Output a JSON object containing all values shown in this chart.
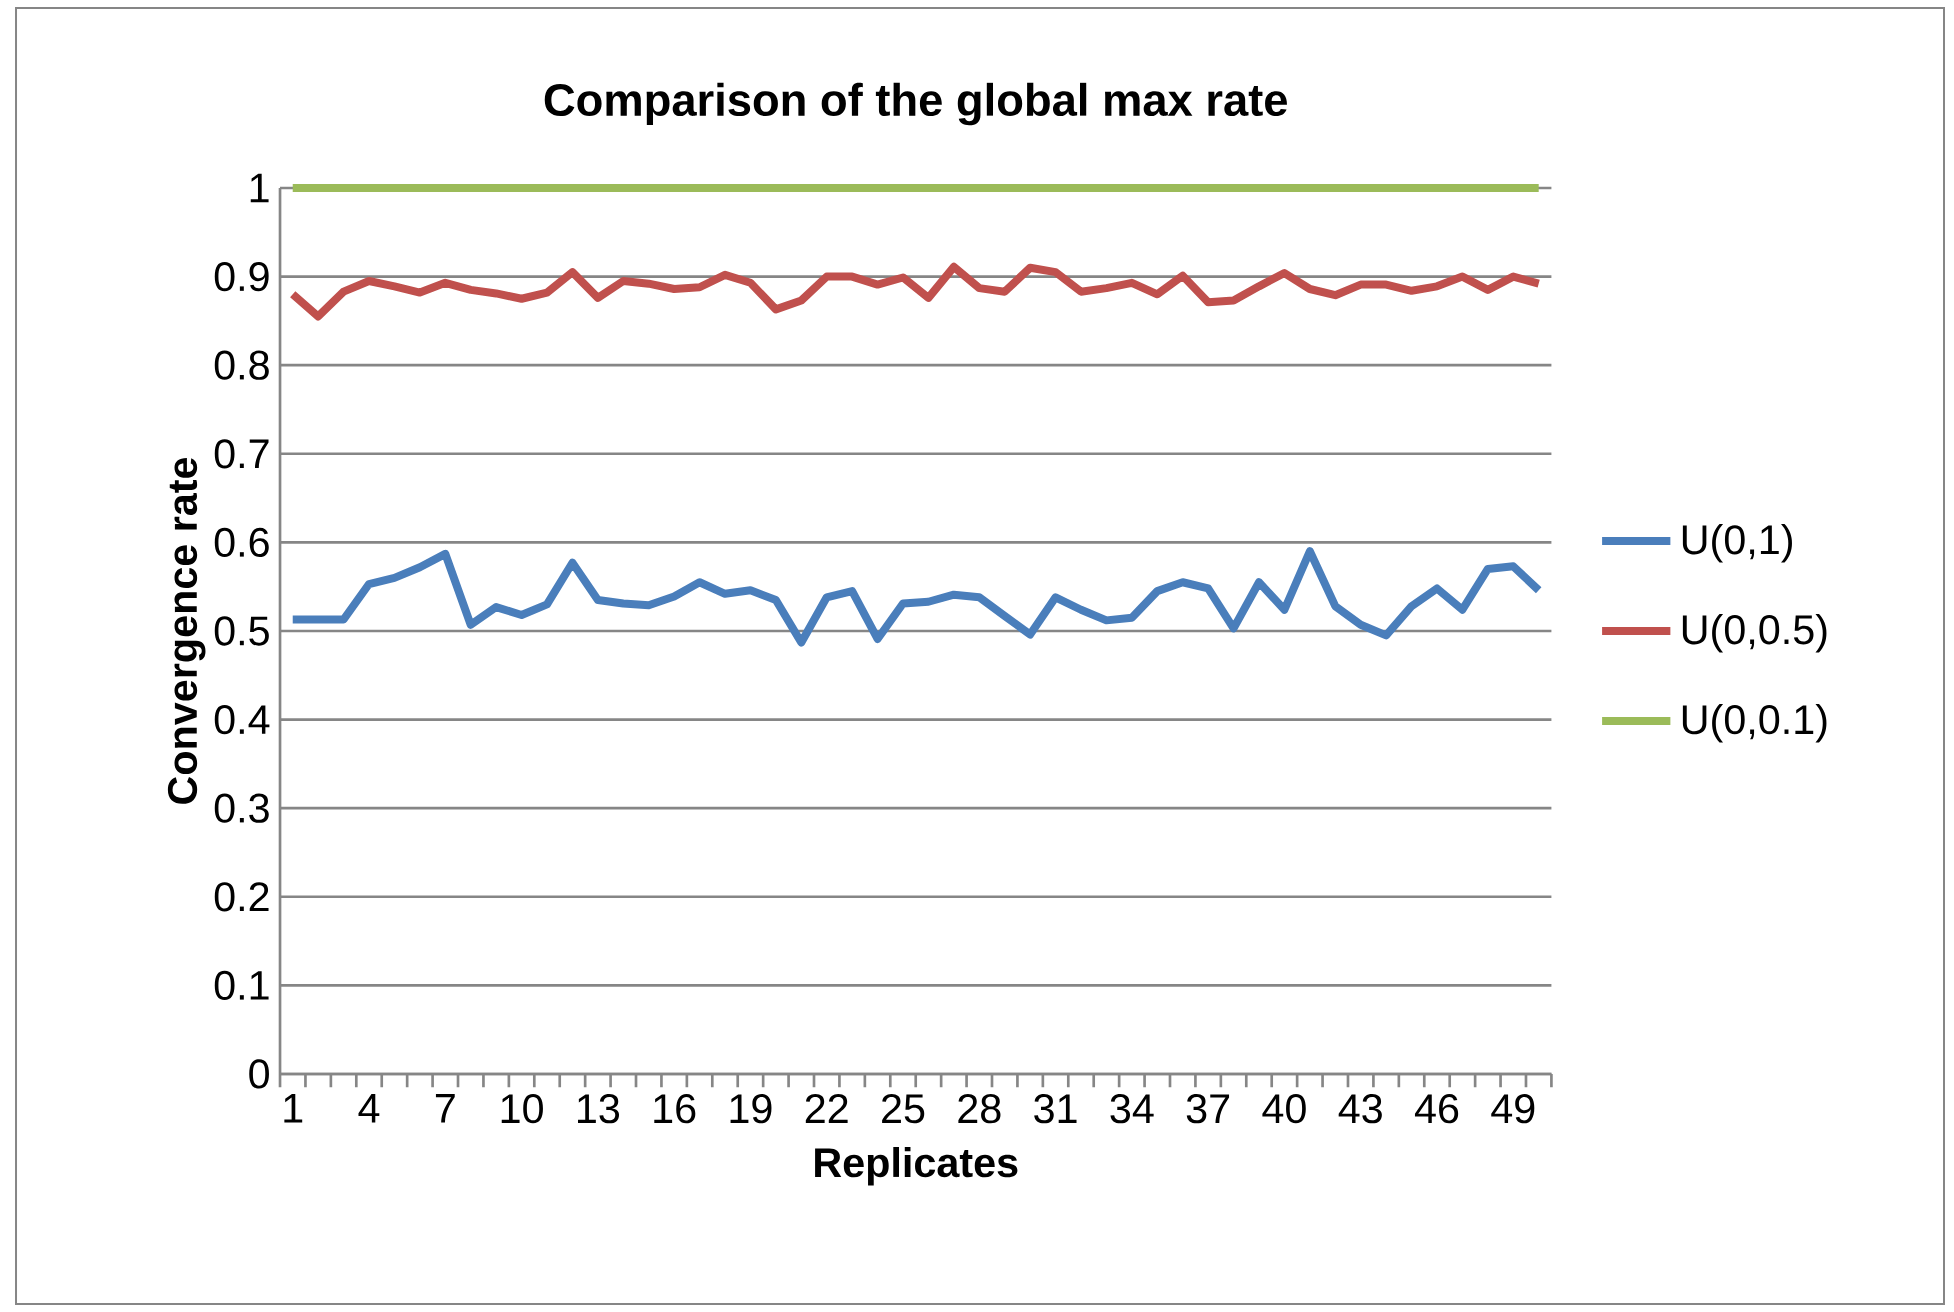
{
  "chart_data": {
    "type": "line",
    "title": "Comparison of the global max rate",
    "xlabel": "Replicates",
    "ylabel": "Convergence rate",
    "categories": [
      "1",
      null,
      null,
      "4",
      null,
      null,
      "7",
      null,
      null,
      "10",
      null,
      null,
      "13",
      null,
      null,
      "16",
      null,
      null,
      "19",
      null,
      null,
      "22",
      null,
      null,
      "25",
      null,
      null,
      "28",
      null,
      null,
      "31",
      null,
      null,
      "34",
      null,
      null,
      "37",
      null,
      null,
      "40",
      null,
      null,
      "43",
      null,
      null,
      "46",
      null,
      null,
      "49",
      null
    ],
    "series": [
      {
        "name": "U(0,1)",
        "color": "#4a7ebb",
        "values": [
          0.513,
          0.513,
          0.513,
          0.553,
          0.56,
          0.572,
          0.587,
          0.507,
          0.527,
          0.518,
          0.53,
          0.577,
          0.535,
          0.531,
          0.529,
          0.539,
          0.555,
          0.542,
          0.546,
          0.535,
          0.487,
          0.538,
          0.545,
          0.491,
          0.531,
          0.533,
          0.541,
          0.538,
          0.517,
          0.496,
          0.538,
          0.524,
          0.512,
          0.515,
          0.545,
          0.555,
          0.548,
          0.503,
          0.555,
          0.524,
          0.59,
          0.528,
          0.507,
          0.495,
          0.528,
          0.548,
          0.524,
          0.57,
          0.573,
          0.546
        ]
      },
      {
        "name": "U(0,0.5)",
        "color": "#c0504d",
        "values": [
          0.88,
          0.855,
          0.883,
          0.895,
          0.889,
          0.882,
          0.893,
          0.885,
          0.881,
          0.875,
          0.882,
          0.905,
          0.876,
          0.895,
          0.892,
          0.886,
          0.888,
          0.902,
          0.893,
          0.863,
          0.873,
          0.9,
          0.9,
          0.891,
          0.899,
          0.876,
          0.911,
          0.887,
          0.883,
          0.91,
          0.905,
          0.883,
          0.887,
          0.893,
          0.88,
          0.901,
          0.871,
          0.873,
          0.889,
          0.904,
          0.886,
          0.879,
          0.891,
          0.891,
          0.884,
          0.889,
          0.9,
          0.885,
          0.9,
          0.892
        ]
      },
      {
        "name": "U(0,0.1)",
        "color": "#9bbb59",
        "values": [
          1,
          1,
          1,
          1,
          1,
          1,
          1,
          1,
          1,
          1,
          1,
          1,
          1,
          1,
          1,
          1,
          1,
          1,
          1,
          1,
          1,
          1,
          1,
          1,
          1,
          1,
          1,
          1,
          1,
          1,
          1,
          1,
          1,
          1,
          1,
          1,
          1,
          1,
          1,
          1,
          1,
          1,
          1,
          1,
          1,
          1,
          1,
          1,
          1,
          1
        ]
      }
    ],
    "ylim": [
      0,
      1
    ],
    "yticks": [
      0,
      0.1,
      0.2,
      0.3,
      0.4,
      0.5,
      0.6,
      0.7,
      0.8,
      0.9,
      1
    ],
    "grid": "y",
    "legend": "right",
    "marker": "none",
    "line_style": "solid"
  }
}
